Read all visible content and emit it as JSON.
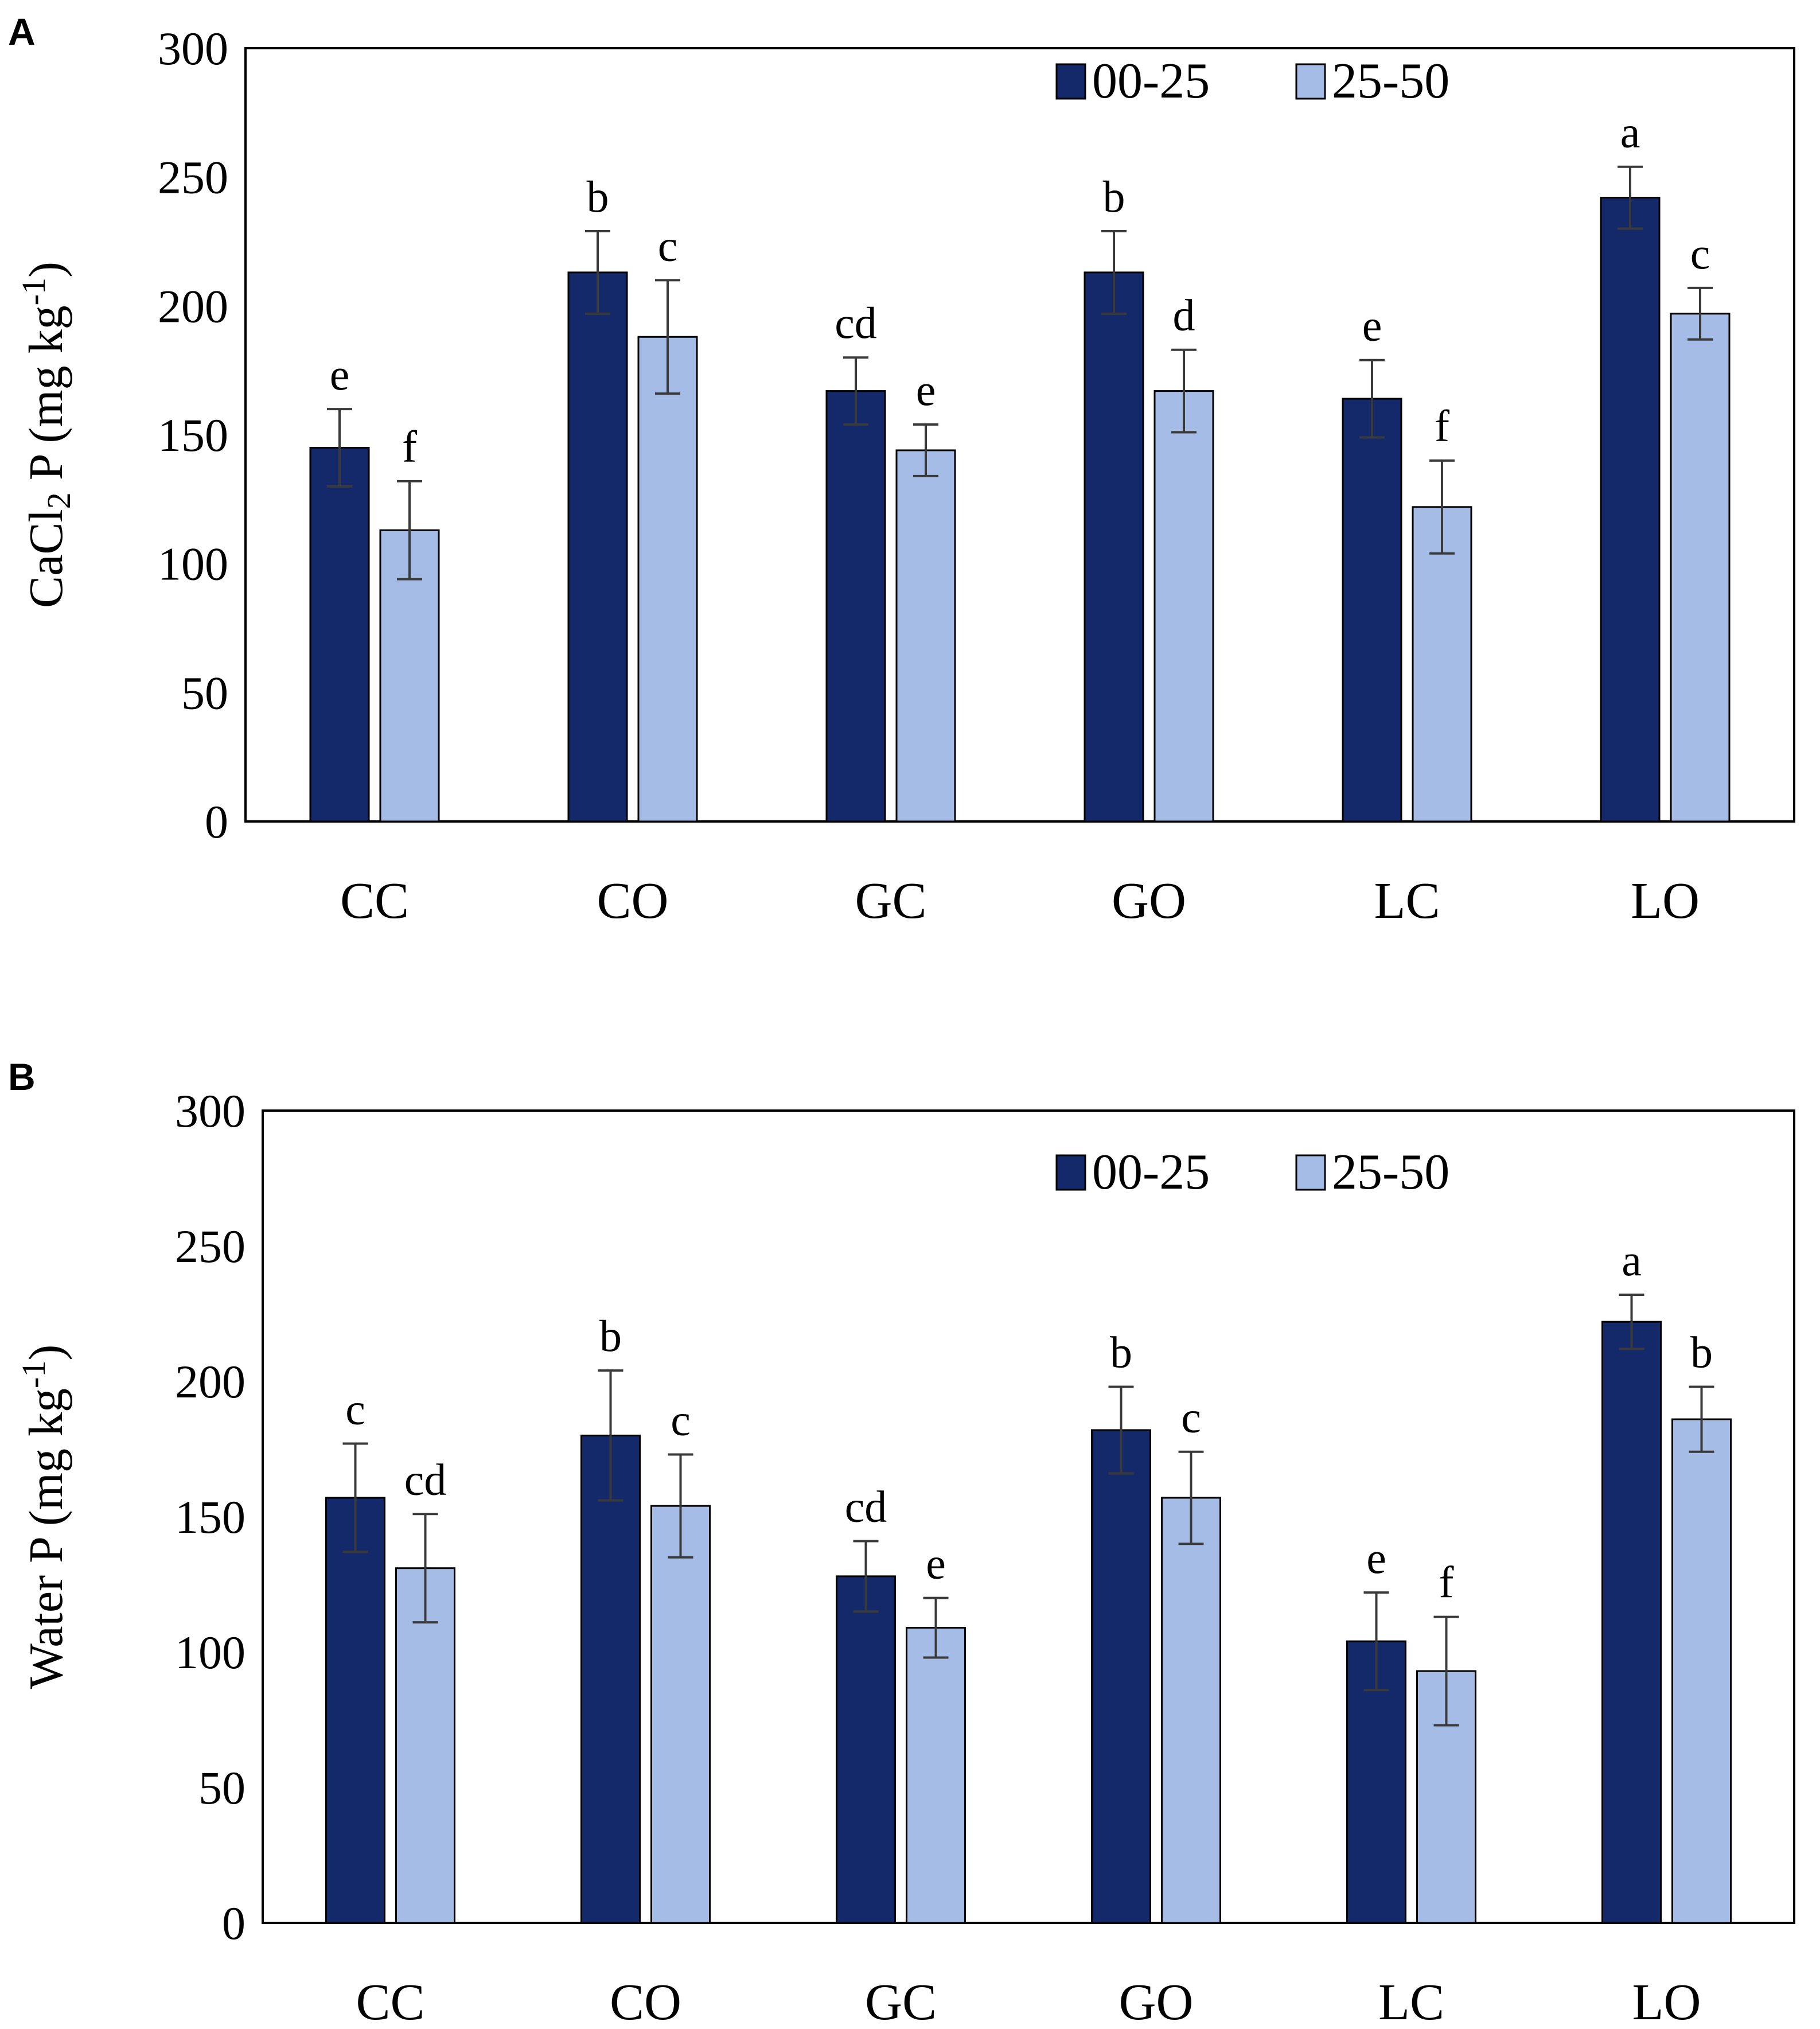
{
  "chart_data": [
    {
      "panel": "A",
      "type": "bar",
      "ylabel": {
        "prefix": "CaCl",
        "sub": "2",
        "middle": " P (mg kg",
        "sup": "-1",
        "suffix": ")"
      },
      "ylim": [
        0,
        300
      ],
      "yticks": [
        "0",
        "50",
        "100",
        "150",
        "200",
        "250",
        "300"
      ],
      "categories": [
        "CC",
        "CO",
        "GC",
        "GO",
        "LC",
        "LO"
      ],
      "series": [
        {
          "name": "00-25",
          "color": "#14296a",
          "values": [
            145,
            213,
            167,
            213,
            164,
            242
          ],
          "errors": [
            15,
            16,
            13,
            16,
            15,
            12
          ],
          "labels": [
            "e",
            "b",
            "cd",
            "b",
            "e",
            "a"
          ]
        },
        {
          "name": "25-50",
          "color": "#a5bde6",
          "values": [
            113,
            188,
            144,
            167,
            122,
            197
          ],
          "errors": [
            19,
            22,
            10,
            16,
            18,
            10
          ],
          "labels": [
            "f",
            "c",
            "e",
            "d",
            "f",
            "c"
          ]
        }
      ]
    },
    {
      "panel": "B",
      "type": "bar",
      "ylabel": {
        "prefix": "Water P (mg kg",
        "sub": "",
        "middle": "",
        "sup": "-1",
        "suffix": ")"
      },
      "ylim": [
        0,
        300
      ],
      "yticks": [
        "0",
        "50",
        "100",
        "150",
        "200",
        "250",
        "300"
      ],
      "categories": [
        "CC",
        "CO",
        "GC",
        "GO",
        "LC",
        "LO"
      ],
      "series": [
        {
          "name": "00-25",
          "color": "#14296a",
          "values": [
            157,
            180,
            128,
            182,
            104,
            222
          ],
          "errors": [
            20,
            24,
            13,
            16,
            18,
            10
          ],
          "labels": [
            "c",
            "b",
            "cd",
            "b",
            "e",
            "a"
          ]
        },
        {
          "name": "25-50",
          "color": "#a5bde6",
          "values": [
            131,
            154,
            109,
            157,
            93,
            186
          ],
          "errors": [
            20,
            19,
            11,
            17,
            20,
            12
          ],
          "labels": [
            "cd",
            "c",
            "e",
            "c",
            "f",
            "b"
          ]
        }
      ]
    }
  ]
}
